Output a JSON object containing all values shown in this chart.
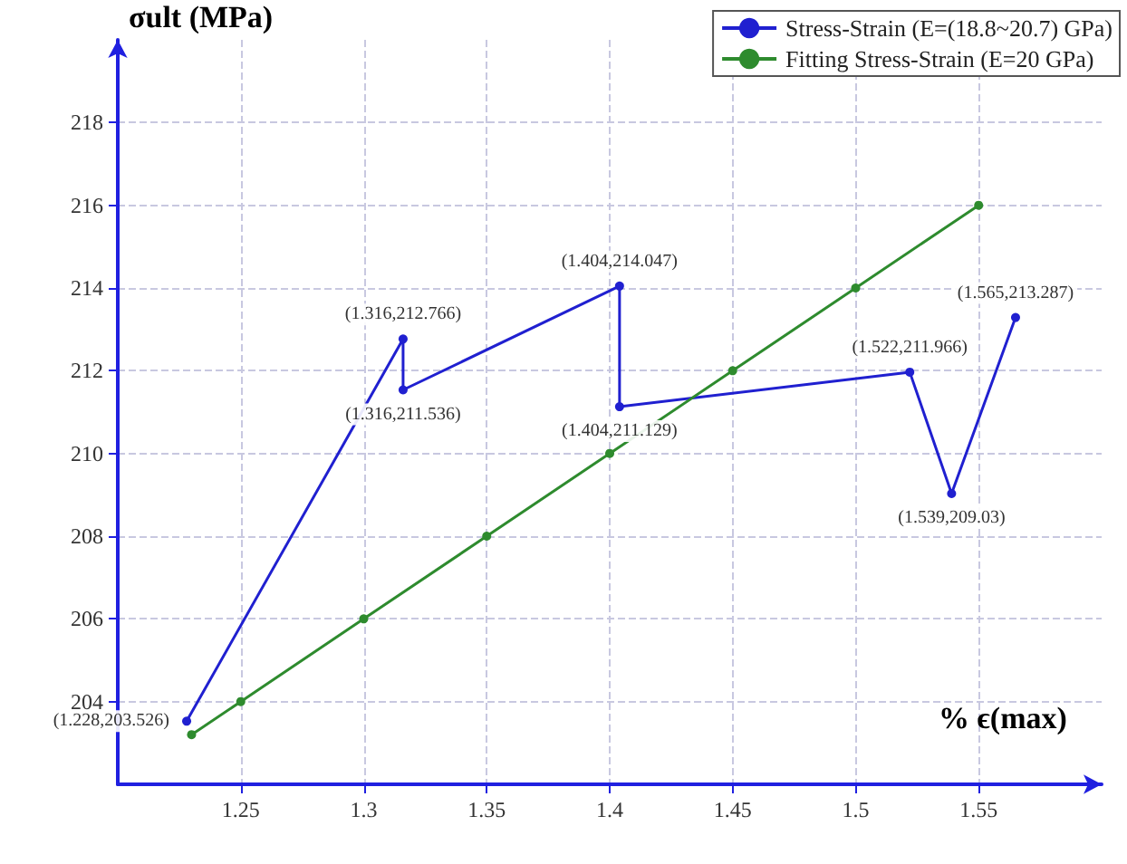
{
  "chart_data": {
    "type": "line",
    "xlabel": "% ϵ(max)",
    "ylabel": "σult (MPa)",
    "xlim": [
      1.2,
      1.6
    ],
    "xticks": [
      1.25,
      1.3,
      1.35,
      1.4,
      1.45,
      1.5,
      1.55
    ],
    "ylim": [
      202,
      220
    ],
    "yticks": [
      204,
      206,
      208,
      210,
      212,
      214,
      216,
      218
    ],
    "grid": true,
    "legend": "top right",
    "marker": "circle",
    "series": [
      {
        "name": "Stress-Strain (E=(18.8~20.7) GPa)",
        "color": "#2020d0",
        "x": [
          1.228,
          1.316,
          1.316,
          1.404,
          1.404,
          1.522,
          1.539,
          1.565
        ],
        "values": [
          203.526,
          212.766,
          211.536,
          214.047,
          211.129,
          211.966,
          209.03,
          213.287
        ],
        "value_labels": [
          "(1.228,203.526)",
          "(1.316,212.766)",
          "(1.316,211.536)",
          "(1.404,214.047)",
          "(1.404,211.129)",
          "(1.522,211.966)",
          "(1.539,209.03)",
          "(1.565,213.287)"
        ]
      },
      {
        "name": "Fitting Stress-Strain (E=20 GPa)",
        "color": "#2e8b2e",
        "x": [
          1.23,
          1.25,
          1.3,
          1.35,
          1.4,
          1.45,
          1.5,
          1.55
        ],
        "values": [
          203.2,
          204,
          206,
          208,
          210,
          212,
          214,
          216
        ]
      }
    ]
  }
}
